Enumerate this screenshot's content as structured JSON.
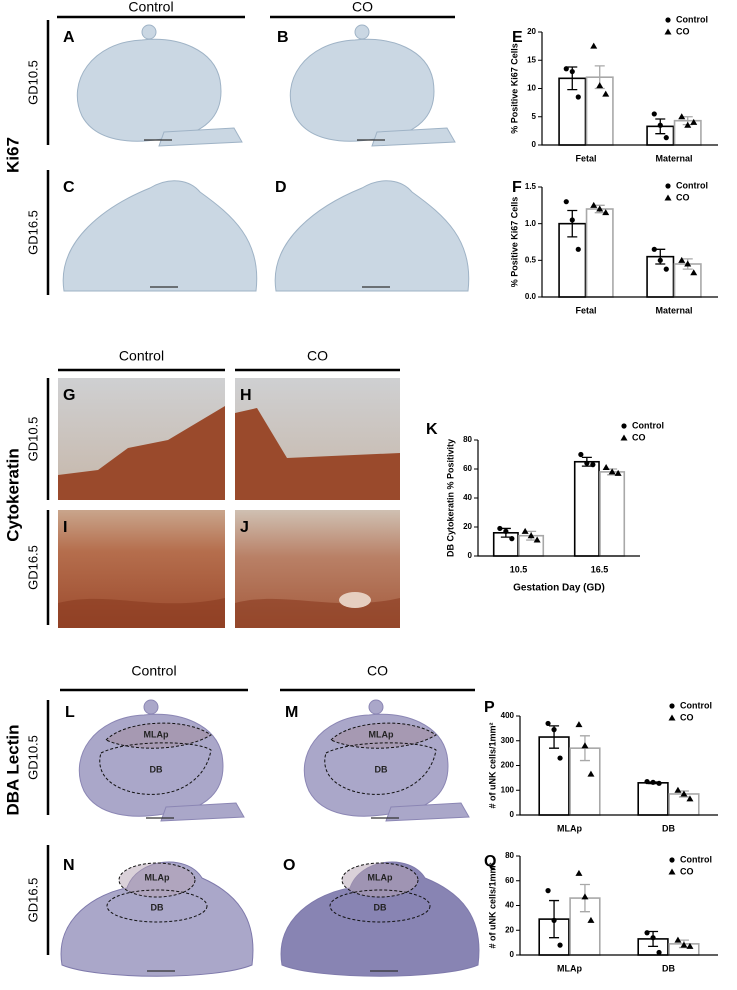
{
  "figure": {
    "sections": [
      {
        "name": "Ki67",
        "columns": [
          "Control",
          "CO"
        ],
        "rows": [
          "GD10.5",
          "GD16.5"
        ],
        "panels": [
          {
            "label": "A"
          },
          {
            "label": "B"
          },
          {
            "label": "C"
          },
          {
            "label": "D"
          }
        ]
      },
      {
        "name": "Cytokeratin",
        "columns": [
          "Control",
          "CO"
        ],
        "rows": [
          "GD10.5",
          "GD16.5"
        ],
        "panels": [
          {
            "label": "G"
          },
          {
            "label": "H"
          },
          {
            "label": "I"
          },
          {
            "label": "J"
          }
        ]
      },
      {
        "name": "DBA Lectin",
        "columns": [
          "Control",
          "CO"
        ],
        "rows": [
          "GD10.5",
          "GD16.5"
        ],
        "panels": [
          {
            "label": "L",
            "regions": [
              "MLAp",
              "DB"
            ]
          },
          {
            "label": "M",
            "regions": [
              "MLAp",
              "DB"
            ]
          },
          {
            "label": "N",
            "regions": [
              "MLAp",
              "DB"
            ]
          },
          {
            "label": "O",
            "regions": [
              "MLAp",
              "DB"
            ]
          }
        ]
      }
    ]
  },
  "chart_data": [
    {
      "type": "bar",
      "panel_label": "E",
      "ylabel": "% Positive Ki67 Cells",
      "categories": [
        "Fetal",
        "Maternal"
      ],
      "ylim": [
        0,
        20
      ],
      "yticks": [
        0,
        5,
        10,
        15,
        20
      ],
      "legend": "upper right",
      "series": [
        {
          "name": "Control",
          "color": "#000000",
          "marker": "circle",
          "values": [
            11.8,
            3.3
          ],
          "errors": [
            2,
            1.3
          ],
          "points": [
            [
              13.5,
              13,
              8.5
            ],
            [
              5.5,
              3.5,
              1.3
            ]
          ]
        },
        {
          "name": "CO",
          "color": "#a8a8a8",
          "marker": "triangle",
          "values": [
            12,
            4.3
          ],
          "errors": [
            2,
            0.7
          ],
          "points": [
            [
              17.5,
              10.5,
              9
            ],
            [
              5,
              3.5,
              4
            ]
          ]
        }
      ]
    },
    {
      "type": "bar",
      "panel_label": "F",
      "ylabel": "% Positive Ki67 Cells",
      "categories": [
        "Fetal",
        "Maternal"
      ],
      "ylim": [
        0,
        1.5
      ],
      "yticks": [
        {
          "value": 0,
          "label": "0.0"
        },
        0.5,
        {
          "value": 1,
          "label": "1.0"
        },
        1.5
      ],
      "legend": "upper right",
      "series": [
        {
          "name": "Control",
          "color": "#000000",
          "marker": "circle",
          "values": [
            1.0,
            0.55
          ],
          "errors": [
            0.18,
            0.1
          ],
          "points": [
            [
              1.3,
              1.05,
              0.65
            ],
            [
              0.65,
              0.5,
              0.38
            ]
          ]
        },
        {
          "name": "CO",
          "color": "#a8a8a8",
          "marker": "triangle",
          "values": [
            1.2,
            0.45
          ],
          "errors": [
            0.05,
            0.07
          ],
          "points": [
            [
              1.25,
              1.2,
              1.15
            ],
            [
              0.5,
              0.45,
              0.33
            ]
          ]
        }
      ]
    },
    {
      "type": "bar",
      "panel_label": "K",
      "ylabel": "DB Cytokeratin % Positivity",
      "xlabel": "Gestation Day (GD)",
      "categories": [
        "10.5",
        "16.5"
      ],
      "ylim": [
        0,
        80
      ],
      "yticks": [
        0,
        20,
        40,
        60,
        80
      ],
      "legend": "upper right",
      "series": [
        {
          "name": "Control",
          "color": "#000000",
          "marker": "circle",
          "values": [
            16,
            65
          ],
          "errors": [
            3,
            3
          ],
          "points": [
            [
              19,
              17,
              12
            ],
            [
              70,
              64,
              63
            ]
          ]
        },
        {
          "name": "CO",
          "color": "#a8a8a8",
          "marker": "triangle",
          "values": [
            14,
            58
          ],
          "errors": [
            3,
            2
          ],
          "points": [
            [
              17,
              14,
              11
            ],
            [
              61,
              58,
              57
            ]
          ]
        }
      ]
    },
    {
      "type": "bar",
      "panel_label": "P",
      "ylabel": "# of uNK cells/1mm²",
      "categories": [
        "MLAp",
        "DB"
      ],
      "ylim": [
        0,
        400
      ],
      "yticks": [
        0,
        100,
        200,
        300,
        400
      ],
      "legend": "upper right",
      "series": [
        {
          "name": "Control",
          "color": "#000000",
          "marker": "circle",
          "values": [
            315,
            130
          ],
          "errors": [
            45,
            3
          ],
          "points": [
            [
              370,
              345,
              230
            ],
            [
              135,
              132,
              128
            ]
          ]
        },
        {
          "name": "CO",
          "color": "#a8a8a8",
          "marker": "triangle",
          "values": [
            270,
            85
          ],
          "errors": [
            50,
            12
          ],
          "points": [
            [
              365,
              280,
              165
            ],
            [
              100,
              85,
              65
            ]
          ]
        }
      ]
    },
    {
      "type": "bar",
      "panel_label": "Q",
      "ylabel": "# of uNK cells/1mm²",
      "categories": [
        "MLAp",
        "DB"
      ],
      "ylim": [
        0,
        80
      ],
      "yticks": [
        0,
        20,
        40,
        60,
        80
      ],
      "legend": "upper right",
      "series": [
        {
          "name": "Control",
          "color": "#000000",
          "marker": "circle",
          "values": [
            29,
            13
          ],
          "errors": [
            15,
            6
          ],
          "points": [
            [
              52,
              28,
              8
            ],
            [
              18,
              14,
              2
            ]
          ]
        },
        {
          "name": "CO",
          "color": "#a8a8a8",
          "marker": "triangle",
          "values": [
            46,
            9
          ],
          "errors": [
            11,
            3
          ],
          "points": [
            [
              66,
              47,
              28
            ],
            [
              12,
              8,
              7
            ]
          ]
        }
      ]
    }
  ]
}
